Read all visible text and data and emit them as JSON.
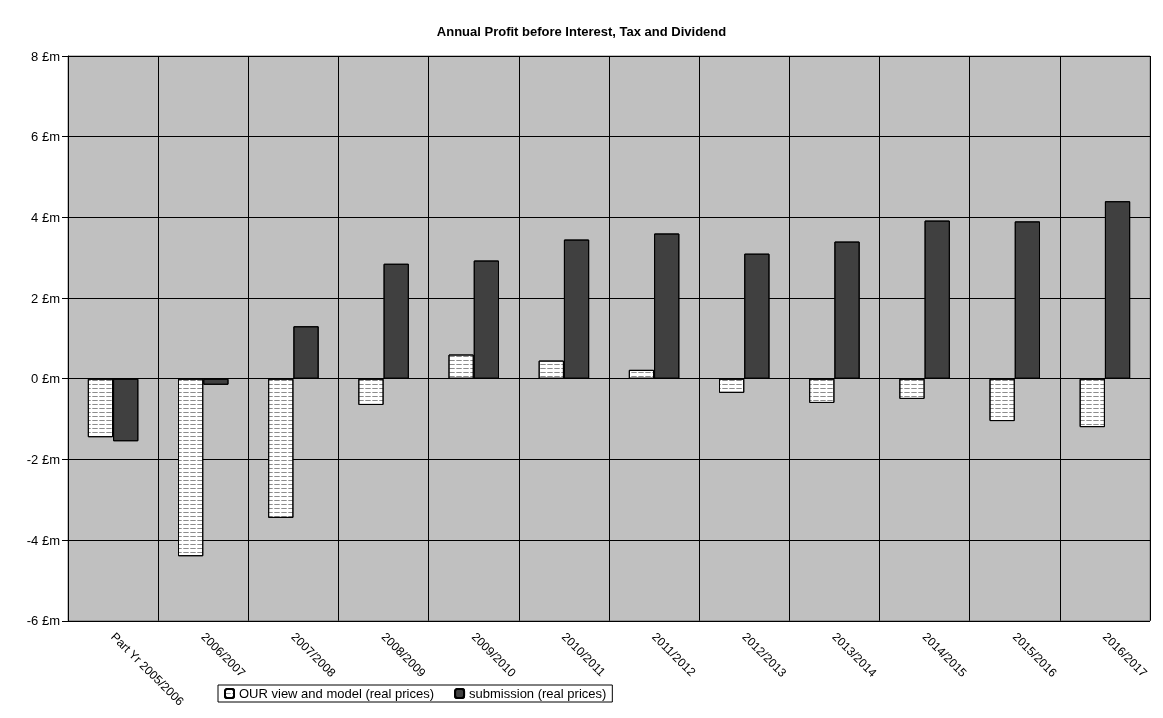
{
  "chart_data": {
    "type": "bar",
    "title": "Annual Profit before Interest, Tax and Dividend",
    "categories": [
      "Part Yr 2005/2006",
      "2006/2007",
      "2007/2008",
      "2008/2009",
      "2009/2010",
      "2010/2011",
      "2011/2012",
      "2012/2013",
      "2013/2014",
      "2014/2015",
      "2015/2016",
      "2016/2017"
    ],
    "series": [
      {
        "name": "OUR view and model (real prices)",
        "color": "#ffffff",
        "values": [
          -1.45,
          -4.4,
          -3.45,
          -0.65,
          0.6,
          0.45,
          0.22,
          -0.35,
          -0.6,
          -0.5,
          -1.05,
          -1.2
        ]
      },
      {
        "name": "submission (real prices)",
        "color": "#404040",
        "values": [
          -1.55,
          -0.15,
          1.3,
          2.85,
          2.93,
          3.45,
          3.6,
          3.1,
          3.4,
          3.92,
          3.9,
          4.4
        ]
      }
    ],
    "ylim": [
      -6,
      8
    ],
    "yticks": [
      {
        "value": -6,
        "label": "-6 £m"
      },
      {
        "value": -4,
        "label": "-4 £m"
      },
      {
        "value": -2,
        "label": "-2 £m"
      },
      {
        "value": 0,
        "label": "0 £m"
      },
      {
        "value": 2,
        "label": "2 £m"
      },
      {
        "value": 4,
        "label": "4 £m"
      },
      {
        "value": 6,
        "label": "6 £m"
      },
      {
        "value": 8,
        "label": "8 £m"
      }
    ],
    "grid": true,
    "legend": "bottom"
  }
}
